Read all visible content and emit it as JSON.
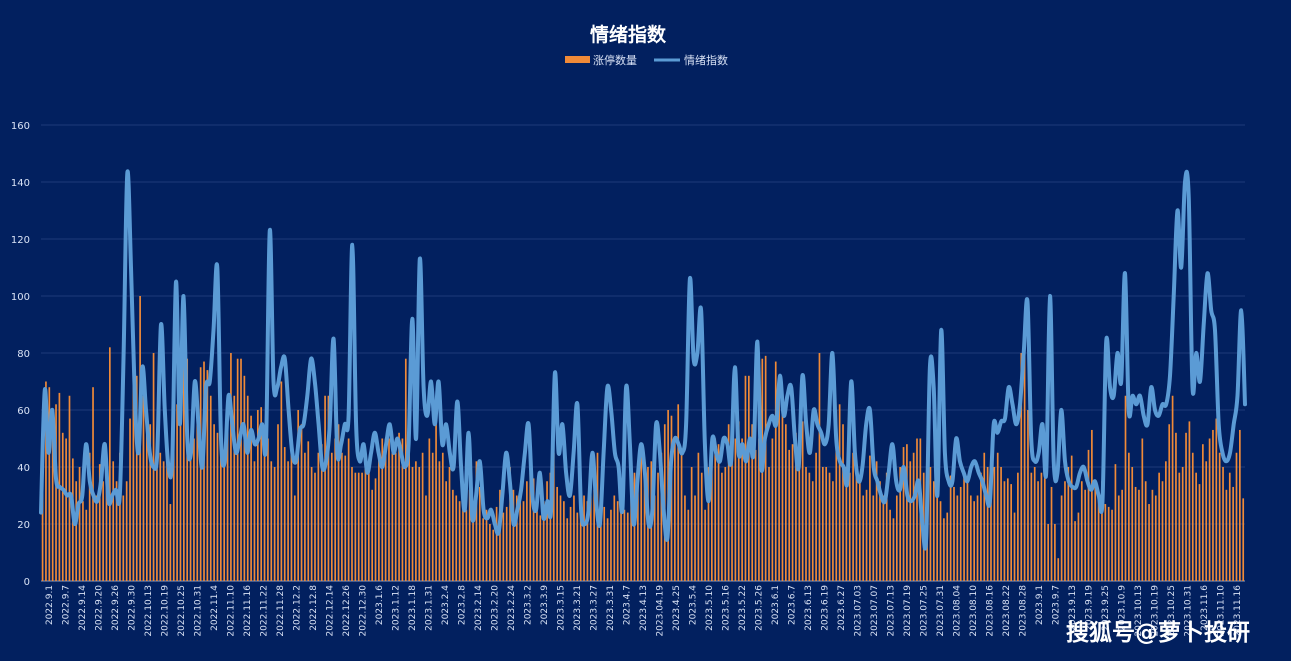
{
  "chart_data": {
    "type": "bar",
    "title": "情绪指数",
    "ylim": [
      0,
      160
    ],
    "y_ticks": [
      0,
      20,
      40,
      60,
      80,
      100,
      120,
      140,
      160
    ],
    "grid": true,
    "legend_position": "top-center",
    "series": [
      {
        "name": "涨停数量",
        "kind": "bar",
        "color": "#f08a38"
      },
      {
        "name": "情绪指数",
        "kind": "line",
        "color": "#5b9bd5"
      }
    ],
    "categories": [
      "2022.9.1",
      "2022.9.7",
      "2022.9.14",
      "2022.9.20",
      "2022.9.26",
      "2022.9.30",
      "2022.10.13",
      "2022.10.19",
      "2022.10.25",
      "2022.10.31",
      "2022.11.4",
      "2022.11.10",
      "2022.11.16",
      "2022.11.22",
      "2022.11.28",
      "2022.12.2",
      "2022.12.8",
      "2022.12.14",
      "2022.12.26",
      "2022.12.30",
      "2023.1.6",
      "2023.1.12",
      "2023.1.18",
      "2023.1.31",
      "2023.2.4",
      "2023.2.8",
      "2023.2.14",
      "2023.2.20",
      "2023.2.24",
      "2023.3.2",
      "2023.3.9",
      "2023.3.15",
      "2023.3.21",
      "2023.3.27",
      "2023.3.31",
      "2023.4.7",
      "2023.4.13",
      "2023.04.19",
      "2023.4.25",
      "2023.5.4",
      "2023.5.10",
      "2023.5.16",
      "2023.5.22",
      "2023.5.26",
      "2023.6.1",
      "2023.6.7",
      "2023.6.13",
      "2023.6.19",
      "2023.6.27",
      "2023.07.03",
      "2023.07.07",
      "2023.07.13",
      "2023.07.19",
      "2023.07.25",
      "2023.07.31",
      "2023.08.04",
      "2023.08.10",
      "2023.08.16",
      "2023.08.22",
      "2023.08.28",
      "2023.9.1",
      "2023.9.7",
      "2023.9.13",
      "2023.9.19",
      "2023.9.25",
      "2023.10.9",
      "2023.10.13",
      "2023.10.19",
      "2023.10.25",
      "2023.10.31",
      "2023.11.6",
      "2023.11.10",
      "2023.11.16"
    ],
    "limit_up_counts": [
      48,
      70,
      68,
      53,
      62,
      66,
      52,
      50,
      65,
      43,
      35,
      40,
      28,
      25,
      45,
      68,
      30,
      41,
      35,
      40,
      82,
      42,
      35,
      45,
      30,
      35,
      57,
      91,
      72,
      100,
      65,
      57,
      55,
      80,
      40,
      45,
      42,
      48,
      27,
      60,
      62,
      62,
      80,
      78,
      45,
      50,
      65,
      75,
      77,
      74,
      65,
      55,
      52,
      48,
      46,
      56,
      80,
      65,
      78,
      78,
      72,
      65,
      58,
      42,
      60,
      61,
      45,
      50,
      42,
      40,
      55,
      70,
      47,
      42,
      45,
      30,
      60,
      55,
      45,
      49,
      40,
      38,
      45,
      48,
      65,
      65,
      45,
      50,
      55,
      45,
      44,
      50,
      40,
      38,
      38,
      38,
      42,
      38,
      32,
      36,
      45,
      50,
      50,
      50,
      45,
      45,
      52,
      50,
      78,
      50,
      40,
      42,
      40,
      45,
      30,
      50,
      45,
      60,
      42,
      45,
      35,
      40,
      32,
      30,
      28,
      25,
      25,
      32,
      28,
      42,
      33,
      22,
      25,
      20,
      18,
      26,
      32,
      24,
      26,
      40,
      32,
      30,
      30,
      28,
      35,
      38,
      36,
      27,
      23,
      28,
      35,
      38,
      45,
      33,
      30,
      28,
      22,
      26,
      30,
      24,
      27,
      30,
      28,
      30,
      32,
      45,
      32,
      26,
      22,
      25,
      30,
      28,
      36,
      25,
      24,
      30,
      38,
      42,
      45,
      35,
      40,
      42,
      30,
      38,
      45,
      55,
      60,
      58,
      50,
      62,
      45,
      30,
      25,
      40,
      30,
      45,
      38,
      25,
      40,
      45,
      50,
      48,
      38,
      40,
      55,
      52,
      50,
      56,
      50,
      72,
      72,
      55,
      46,
      50,
      78,
      79,
      40,
      50,
      77,
      70,
      60,
      55,
      46,
      48,
      52,
      55,
      56,
      40,
      38,
      35,
      45,
      80,
      40,
      40,
      38,
      35,
      60,
      62,
      55,
      40,
      38,
      45,
      40,
      35,
      30,
      32,
      44,
      30,
      42,
      35,
      30,
      38,
      25,
      22,
      30,
      40,
      47,
      48,
      42,
      45,
      50,
      50,
      38,
      35,
      40,
      35,
      32,
      28,
      22,
      24,
      37,
      33,
      30,
      33,
      38,
      36,
      30,
      28,
      30,
      38,
      45,
      40,
      38,
      40,
      45,
      40,
      35,
      36,
      34,
      24,
      38,
      80,
      82,
      60,
      38,
      40,
      35,
      38,
      36,
      20,
      33,
      20,
      8,
      30,
      35,
      40,
      44,
      21,
      24,
      35,
      32,
      46,
      53,
      34,
      30,
      35,
      27,
      26,
      25,
      41,
      30,
      32,
      65,
      45,
      40,
      33,
      32,
      50,
      35,
      27,
      32,
      30,
      38,
      35,
      42,
      55,
      65,
      52,
      38,
      40,
      52,
      56,
      45,
      38,
      34,
      48,
      42,
      50,
      53,
      57,
      45,
      40,
      32,
      38,
      33,
      45,
      53,
      29
    ],
    "sentiment_index": [
      24,
      67,
      45,
      60,
      36,
      33,
      32,
      30,
      30,
      20,
      27,
      30,
      48,
      35,
      30,
      28,
      35,
      48,
      28,
      30,
      32,
      30,
      78,
      143,
      110,
      65,
      45,
      75,
      60,
      45,
      40,
      45,
      90,
      60,
      40,
      43,
      105,
      55,
      100,
      50,
      45,
      70,
      55,
      40,
      68,
      70,
      88,
      110,
      50,
      42,
      65,
      55,
      45,
      50,
      55,
      45,
      53,
      48,
      50,
      55,
      48,
      123,
      70,
      68,
      75,
      78,
      60,
      45,
      42,
      53,
      55,
      65,
      78,
      70,
      55,
      40,
      42,
      55,
      85,
      45,
      48,
      55,
      58,
      118,
      55,
      42,
      48,
      38,
      45,
      52,
      45,
      40,
      48,
      55,
      45,
      50,
      45,
      40,
      48,
      92,
      50,
      113,
      68,
      58,
      70,
      55,
      70,
      48,
      55,
      45,
      40,
      63,
      40,
      25,
      52,
      22,
      30,
      42,
      25,
      22,
      25,
      20,
      17,
      30,
      45,
      35,
      20,
      25,
      32,
      45,
      55,
      30,
      25,
      38,
      22,
      28,
      25,
      73,
      45,
      55,
      38,
      30,
      45,
      62,
      25,
      20,
      25,
      45,
      28,
      20,
      45,
      68,
      60,
      45,
      40,
      25,
      68,
      48,
      20,
      35,
      48,
      38,
      20,
      25,
      55,
      45,
      25,
      15,
      42,
      50,
      48,
      45,
      55,
      106,
      78,
      80,
      95,
      48,
      28,
      50,
      45,
      42,
      50,
      48,
      42,
      75,
      45,
      48,
      42,
      50,
      45,
      84,
      40,
      50,
      55,
      58,
      55,
      72,
      58,
      65,
      68,
      50,
      40,
      72,
      55,
      45,
      60,
      55,
      52,
      48,
      55,
      80,
      50,
      42,
      40,
      35,
      70,
      45,
      35,
      40,
      55,
      60,
      40,
      35,
      30,
      28,
      38,
      48,
      35,
      32,
      40,
      30,
      28,
      30,
      35,
      20,
      15,
      75,
      68,
      30,
      88,
      45,
      35,
      35,
      50,
      42,
      38,
      35,
      40,
      42,
      38,
      35,
      30,
      28,
      55,
      52,
      56,
      57,
      68,
      62,
      55,
      62,
      80,
      98,
      50,
      42,
      45,
      55,
      38,
      100,
      42,
      38,
      60,
      42,
      35,
      33,
      33,
      38,
      40,
      35,
      32,
      35,
      30,
      28,
      84,
      68,
      65,
      80,
      70,
      108,
      60,
      65,
      62,
      65,
      58,
      55,
      68,
      60,
      58,
      62,
      62,
      72,
      100,
      130,
      110,
      140,
      135,
      68,
      80,
      70,
      90,
      108,
      95,
      88,
      55,
      45,
      42,
      45,
      55,
      65,
      95,
      62
    ]
  },
  "watermark": "搜狐号@萝卜投研"
}
